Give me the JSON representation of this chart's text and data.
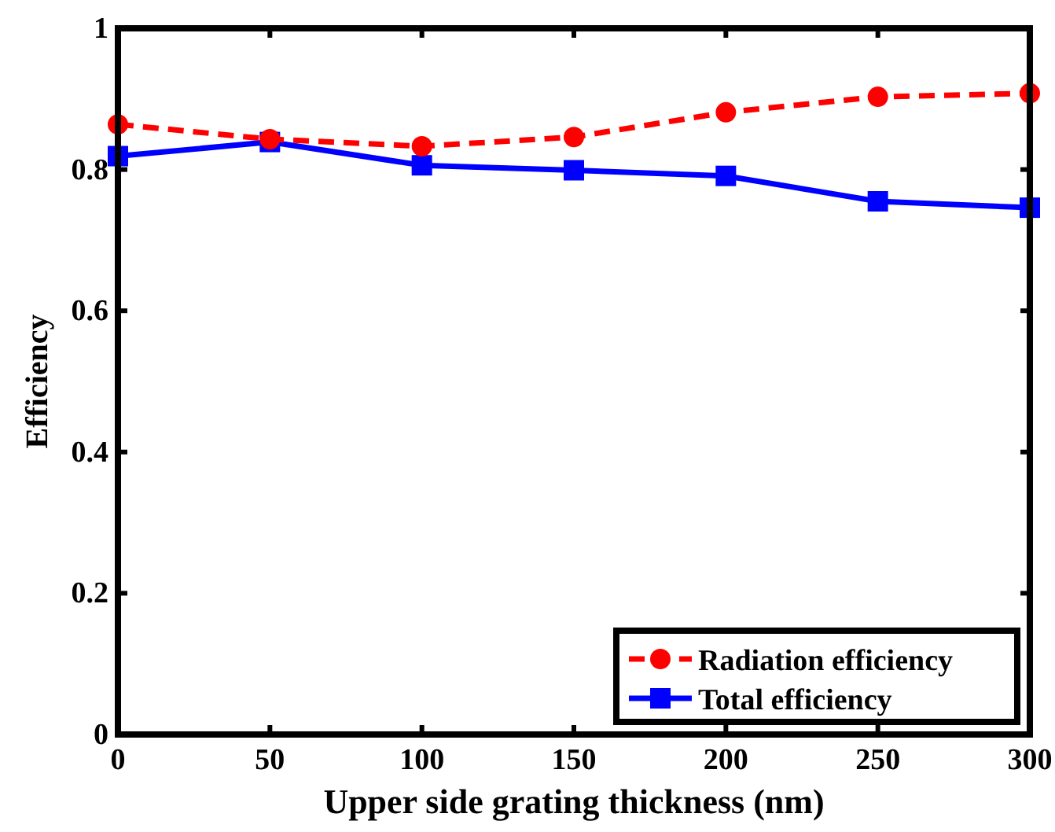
{
  "chart_data": {
    "type": "line",
    "xlabel": "Upper side grating thickness (nm)",
    "ylabel": "Efficiency",
    "x": [
      0,
      50,
      100,
      150,
      200,
      250,
      300
    ],
    "series": [
      {
        "name": "Radiation efficiency",
        "color": "#ff0000",
        "values": [
          0.864,
          0.843,
          0.833,
          0.846,
          0.881,
          0.903,
          0.908
        ],
        "marker": "circle",
        "line_style": "dashed"
      },
      {
        "name": "Total efficiency",
        "color": "#0000ff",
        "values": [
          0.819,
          0.839,
          0.806,
          0.799,
          0.791,
          0.755,
          0.746
        ],
        "marker": "square",
        "line_style": "solid"
      }
    ],
    "xlim": [
      0,
      300
    ],
    "xticks": [
      0,
      50,
      100,
      150,
      200,
      250,
      300
    ],
    "ylim": [
      0,
      1
    ],
    "yticks": [
      0,
      0.2,
      0.4,
      0.6,
      0.8,
      1
    ],
    "grid": false,
    "legend": "bottom right"
  }
}
